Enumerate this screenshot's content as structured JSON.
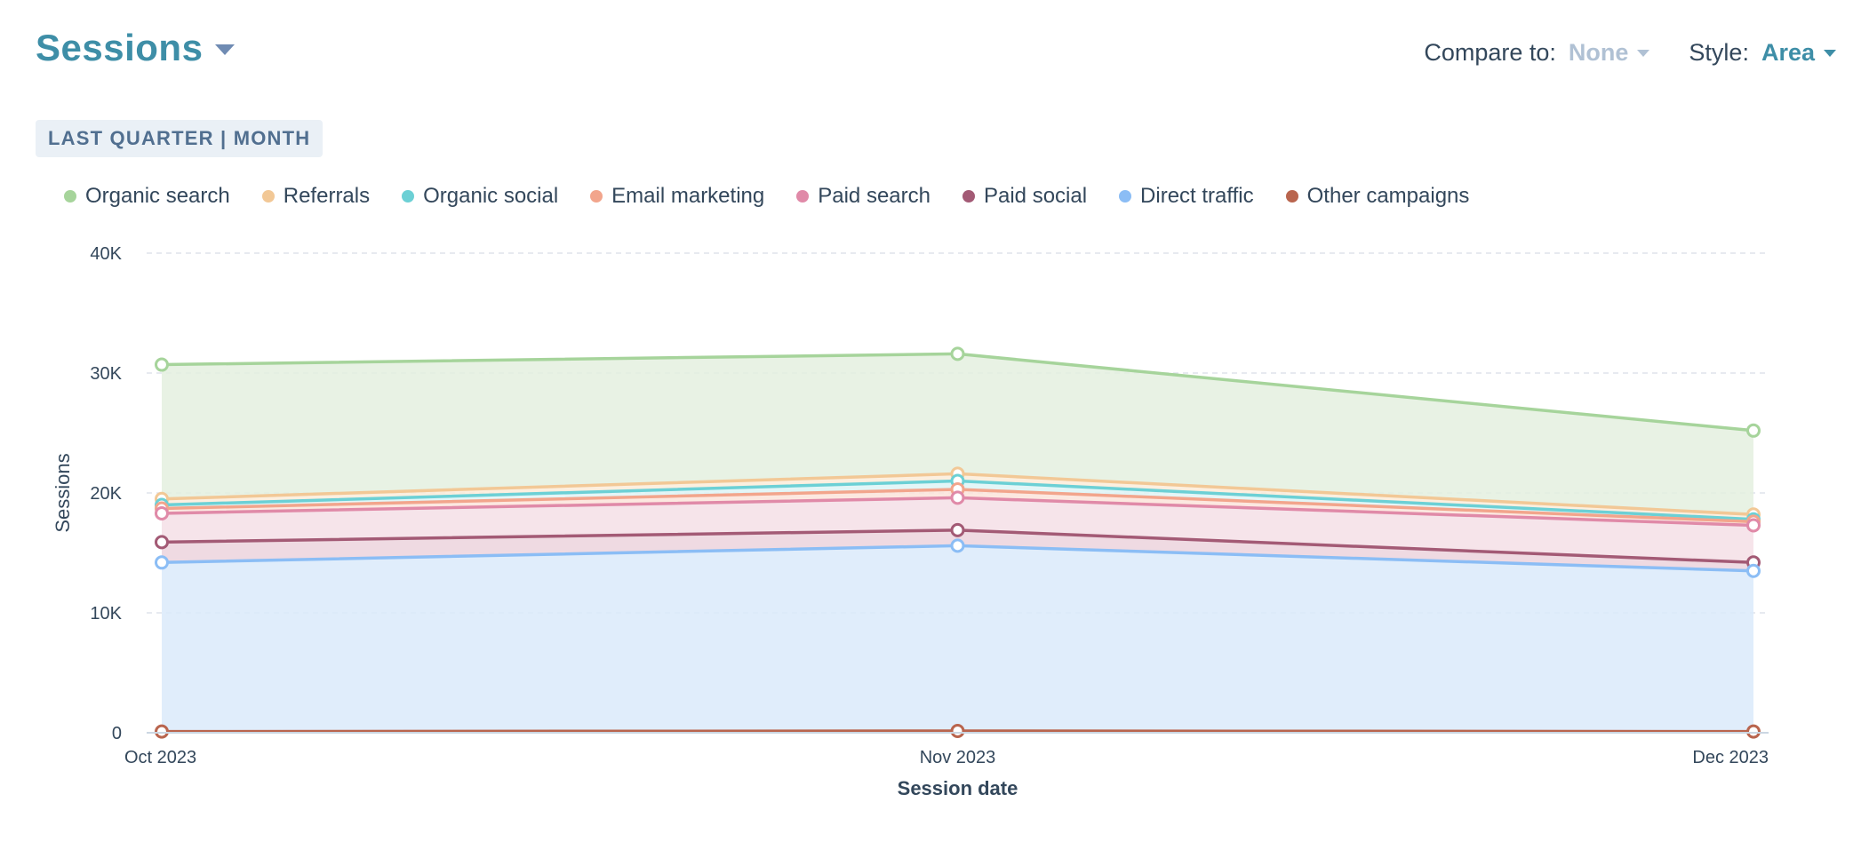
{
  "header": {
    "title": "Sessions"
  },
  "controls": {
    "compare_label": "Compare to:",
    "compare_value": "None",
    "style_label": "Style:",
    "style_value": "Area"
  },
  "range_badge": "LAST QUARTER | MONTH",
  "colors": {
    "title": "#3e8ea7",
    "grid": "#dfe3eb"
  },
  "chart_data": {
    "type": "area",
    "stacked": true,
    "xlabel": "Session date",
    "ylabel": "Sessions",
    "ylim": [
      0,
      40000
    ],
    "yticks": [
      0,
      10000,
      20000,
      30000,
      40000
    ],
    "ytick_labels": [
      "0",
      "10K",
      "20K",
      "30K",
      "40K"
    ],
    "categories": [
      "Oct 2023",
      "Nov 2023",
      "Dec 2023"
    ],
    "grid": true,
    "legend_position": "top-left",
    "series": [
      {
        "name": "Other campaigns",
        "color": "#b9654e",
        "fill": "#e8c7bc",
        "values": [
          100,
          150,
          100
        ]
      },
      {
        "name": "Direct traffic",
        "color": "#8bbdf5",
        "fill": "#dbeafa",
        "values": [
          14100,
          15450,
          13400
        ]
      },
      {
        "name": "Paid social",
        "color": "#a35a75",
        "fill": "#ecd3dd",
        "values": [
          1700,
          1300,
          700
        ]
      },
      {
        "name": "Paid search",
        "color": "#e08aa8",
        "fill": "#f5dfe6",
        "values": [
          2400,
          2700,
          3100
        ]
      },
      {
        "name": "Email marketing",
        "color": "#f2a58c",
        "fill": "#fbe4da",
        "values": [
          400,
          700,
          300
        ]
      },
      {
        "name": "Organic social",
        "color": "#6cd0d5",
        "fill": "#def5f6",
        "values": [
          300,
          700,
          200
        ]
      },
      {
        "name": "Referrals",
        "color": "#f2c896",
        "fill": "#fbecd9",
        "values": [
          500,
          600,
          400
        ]
      },
      {
        "name": "Organic search",
        "color": "#a6d49b",
        "fill": "#e4f0df",
        "values": [
          11200,
          10000,
          7000
        ]
      }
    ],
    "legend_order": [
      "Organic search",
      "Referrals",
      "Organic social",
      "Email marketing",
      "Paid search",
      "Paid social",
      "Direct traffic",
      "Other campaigns"
    ]
  }
}
